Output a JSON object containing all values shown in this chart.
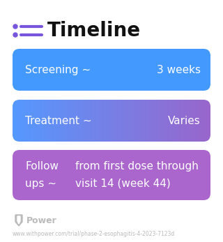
{
  "title": "Timeline",
  "title_fontsize": 20,
  "title_fontweight": "bold",
  "title_color": "#111111",
  "icon_color": "#7755DD",
  "background_color": "#ffffff",
  "rows": [
    {
      "label_left": "Screening ~",
      "label_right": "3 weeks",
      "color": "#4499FF",
      "gradient": false,
      "color_start": "#4499FF",
      "color_end": "#4499FF",
      "multiline": false,
      "label_left2": null,
      "label_right2": null
    },
    {
      "label_left": "Treatment ~",
      "label_right": "Varies",
      "color": "#7777DD",
      "gradient": true,
      "color_start": "#5599FF",
      "color_end": "#9966CC",
      "multiline": false,
      "label_left2": null,
      "label_right2": null
    },
    {
      "label_left": "Follow",
      "label_right": "from first dose through",
      "label_left2": "ups ~",
      "label_right2": "visit 14 (week 44)",
      "color": "#AA66CC",
      "gradient": false,
      "color_start": "#AA66CC",
      "color_end": "#AA66CC",
      "multiline": true
    }
  ],
  "footer_text": "Power",
  "footer_url": "www.withpower.com/trial/phase-2-esophagitis-4-2023-7123d",
  "footer_color": "#bbbbbb",
  "text_color": "#ffffff",
  "text_fontsize": 11
}
